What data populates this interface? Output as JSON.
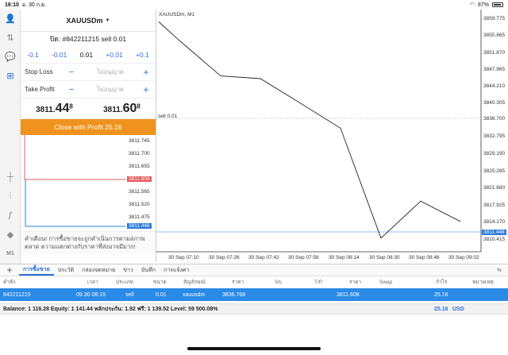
{
  "status": {
    "time": "16:10",
    "date": "อ. 30 ก.ย.",
    "battery": "87%"
  },
  "panel": {
    "symbol": "XAUUSDm",
    "ticket": "ปิด: #842211215 sell 0.01",
    "steps": [
      "-0.1",
      "-0.01",
      "0.01",
      "+0.01",
      "+0.1"
    ],
    "stop_loss_label": "Stop Loss",
    "take_profit_label": "Take Profit",
    "unallowed": "ไม่อนุญาต",
    "bid": {
      "main": "3811.",
      "big": "44",
      "sup": "8"
    },
    "ask": {
      "main": "3811.",
      "big": "60",
      "sup": "8"
    },
    "close_label": "Close with Profit 25.16",
    "mini_levels": [
      "3811.745",
      "3811.700",
      "3811.655",
      "3811.608",
      "3811.565",
      "3811.520",
      "3811.475",
      "3811.448"
    ],
    "warning": "คำเตือน! การซื้อขายจะถูกดำเนินการตามสภาพตลาด ความแตกต่างกับราคาที่ส่งอาจมีมาก!"
  },
  "chart": {
    "title": "XAUUSDm, M1",
    "sell_label": "sell 0.01",
    "price_labels": [
      "3859.775",
      "3855.865",
      "3851.870",
      "3847.965",
      "3844.210",
      "3840.305",
      "3836.700",
      "3832.795",
      "3829.190",
      "3825.285",
      "3821.680",
      "3817.925",
      "3814.170",
      "3811.448",
      "3810.415"
    ],
    "time_labels": [
      "30 Sep 07:10",
      "30 Sep 07:26",
      "30 Sep 07:42",
      "30 Sep 07:58",
      "30 Sep 08:14",
      "30 Sep 08:30",
      "30 Sep 08:46",
      "30 Sep 09:02"
    ],
    "chart_data": {
      "type": "line",
      "title": "XAUUSDm, M1",
      "x": [
        "30 Sep 07:10",
        "30 Sep 07:26",
        "30 Sep 07:42",
        "30 Sep 07:58",
        "30 Sep 08:14",
        "30 Sep 08:30",
        "30 Sep 08:46",
        "30 Sep 09:02"
      ],
      "series": [
        {
          "values": [
            3854.5,
            3846.8,
            3846.2,
            3840.8,
            3835.2,
            3810.8,
            3819.0,
            3814.5
          ]
        }
      ],
      "ylim": [
        3810.415,
        3859.775
      ]
    }
  },
  "tabs": [
    "การซื้อขาย",
    "ประวัติ",
    "กล่องจดหมาย",
    "ข่าว",
    "บันทึก",
    "การแจ้งค่า"
  ],
  "table": {
    "headers": [
      "คำสั่ง",
      "เวลา",
      "ประเภท",
      "ขนาด",
      "สัญลักษณ์",
      "ราคา",
      "S/L",
      "T/P",
      "ราคา",
      "Swap",
      "กำไร",
      "หมายเหตุ"
    ],
    "row": {
      "order": "842211215",
      "time": "09.30 08:15",
      "type": "sell",
      "volume": "0.01",
      "symbol": "xauusdm",
      "price": "3836.768",
      "current": "3811.608",
      "profit": "25.16"
    }
  },
  "balance": {
    "text": "Balance: 1 116.28 Equity: 1 141.44 หลักประกัน: 1.92 ฟรี: 1 139.52 Level: 59 500.08%",
    "profit": "25.16",
    "currency": "USD"
  }
}
